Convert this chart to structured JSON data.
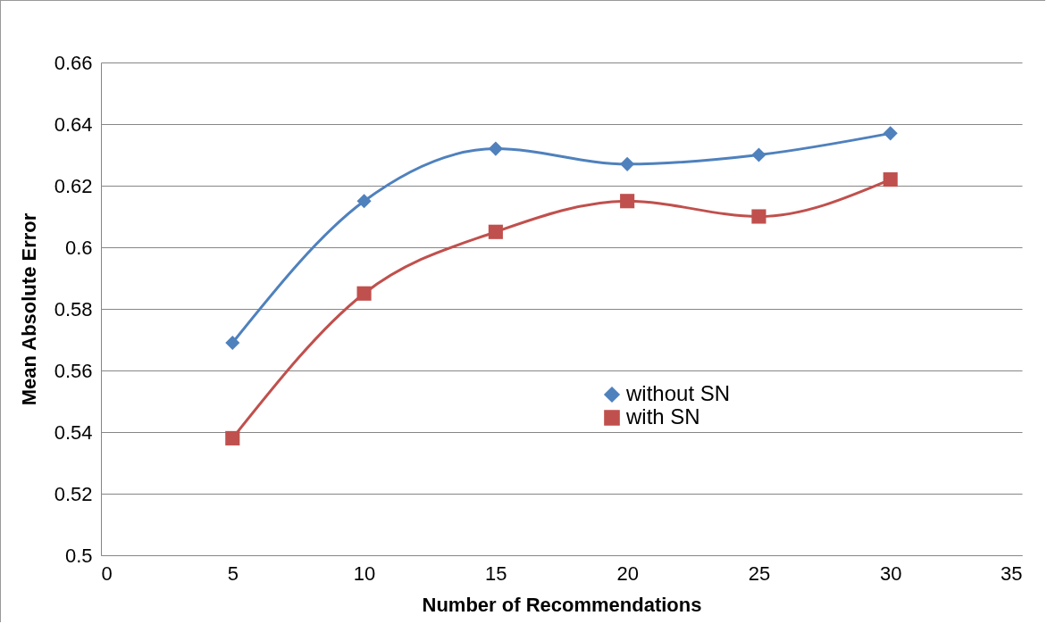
{
  "chart_data": {
    "type": "line",
    "xlabel": "Number of Recommendations",
    "ylabel": "Mean Absolute Error",
    "x": [
      5,
      10,
      15,
      20,
      25,
      30
    ],
    "series": [
      {
        "name": "without SN",
        "color": "#4f81bd",
        "marker": "diamond",
        "values": [
          0.569,
          0.615,
          0.632,
          0.627,
          0.63,
          0.637
        ]
      },
      {
        "name": "with SN",
        "color": "#c0504d",
        "marker": "square",
        "values": [
          0.538,
          0.585,
          0.605,
          0.615,
          0.61,
          0.622
        ]
      }
    ],
    "xlim": [
      0,
      35
    ],
    "xticks": [
      0,
      5,
      10,
      15,
      20,
      25,
      30,
      35
    ],
    "ylim": [
      0.5,
      0.66
    ],
    "yticks": [
      0.5,
      0.52,
      0.54,
      0.56,
      0.58,
      0.6,
      0.62,
      0.64,
      0.66
    ],
    "grid": "y",
    "legend": "right"
  }
}
